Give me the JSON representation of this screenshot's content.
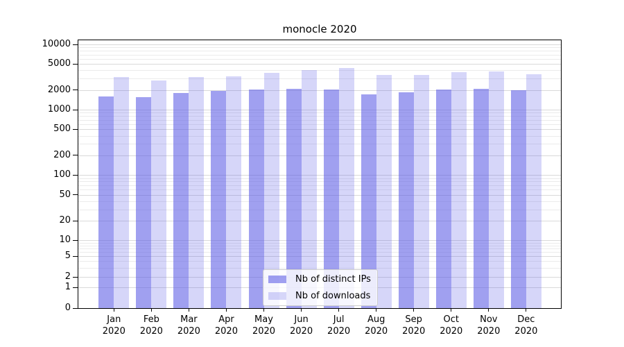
{
  "chart_data": {
    "type": "bar",
    "title": "monocle 2020",
    "categories": [
      "Jan 2020",
      "Feb 2020",
      "Mar 2020",
      "Apr 2020",
      "May 2020",
      "Jun 2020",
      "Jul 2020",
      "Aug 2020",
      "Sep 2020",
      "Oct 2020",
      "Nov 2020",
      "Dec 2020"
    ],
    "series": [
      {
        "name": "Nb of distinct IPs",
        "color": "rgba(91,91,230,0.58)",
        "values": [
          1600,
          1560,
          1790,
          1950,
          2040,
          2080,
          2060,
          1720,
          1830,
          2050,
          2100,
          2000
        ]
      },
      {
        "name": "Nb of downloads",
        "color": "rgba(91,91,230,0.25)",
        "values": [
          3150,
          2820,
          3200,
          3280,
          3640,
          4050,
          4400,
          3380,
          3450,
          3730,
          3880,
          3500
        ]
      }
    ],
    "xlabel": "",
    "ylabel": "",
    "y_axis": {
      "scale": "symlog",
      "ticks": [
        10000,
        5000,
        2000,
        1000,
        500,
        200,
        100,
        50,
        20,
        10,
        5,
        2,
        1,
        0
      ],
      "range": [
        0,
        11700
      ]
    },
    "legend": {
      "position": "lower center",
      "entries": [
        "Nb of distinct IPs",
        "Nb of downloads"
      ]
    },
    "grid": true,
    "grid_major_color": "#d9d9d9",
    "grid_minor_color": "#ebebeb",
    "spine_color": "#000000"
  }
}
